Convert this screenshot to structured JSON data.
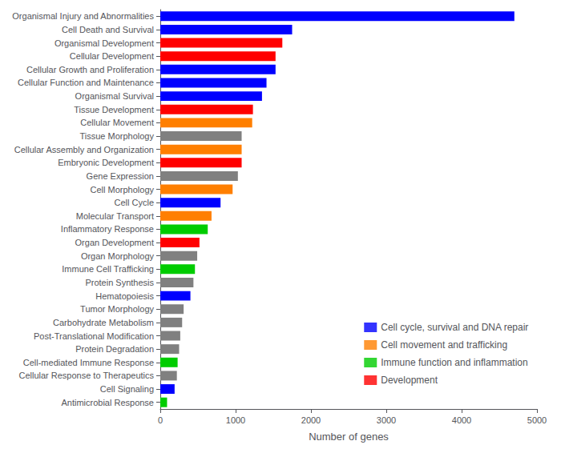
{
  "chart_data": {
    "type": "bar",
    "orientation": "horizontal",
    "categories": [
      "Organismal Injury and Abnormalities",
      "Cell Death and Survival",
      "Organismal Development",
      "Cellular Development",
      "Cellular Growth and Proliferation",
      "Cellular Function and Maintenance",
      "Organismal Survival",
      "Tissue Development",
      "Cellular Movement",
      "Tissue Morphology",
      "Cellular Assembly and Organization",
      "Embryonic Development",
      "Gene Expression",
      "Cell Morphology",
      "Cell Cycle",
      "Molecular Transport",
      "Inflammatory Response",
      "Organ Development",
      "Organ Morphology",
      "Immune Cell Trafficking",
      "Protein Synthesis",
      "Hematopoiesis",
      "Tumor Morphology",
      "Carbohydrate Metabolism",
      "Post-Translational Modification",
      "Protein Degradation",
      "Cell-mediated Immune Response",
      "Cellular Response to Therapeutics",
      "Cell Signaling",
      "Antimicrobial Response"
    ],
    "values": [
      4700,
      1750,
      1620,
      1530,
      1530,
      1410,
      1350,
      1230,
      1220,
      1080,
      1080,
      1080,
      1030,
      960,
      800,
      680,
      630,
      520,
      490,
      460,
      440,
      400,
      310,
      290,
      265,
      250,
      230,
      220,
      190,
      90
    ],
    "colors": [
      "#0000FF",
      "#0000FF",
      "#FF0000",
      "#FF0000",
      "#0000FF",
      "#0000FF",
      "#0000FF",
      "#FF0000",
      "#FF7F00",
      "#808080",
      "#FF7F00",
      "#FF0000",
      "#808080",
      "#FF7F00",
      "#0000FF",
      "#FF7F00",
      "#00CC00",
      "#FF0000",
      "#808080",
      "#00CC00",
      "#808080",
      "#0000FF",
      "#808080",
      "#808080",
      "#808080",
      "#808080",
      "#00CC00",
      "#808080",
      "#0000FF",
      "#00CC00"
    ],
    "xlabel": "Number of genes",
    "xlim": [
      0,
      5000
    ],
    "xticks": [
      0,
      1000,
      2000,
      3000,
      4000,
      5000
    ],
    "grid": false,
    "legend": "lower right",
    "legend_labels": [
      "Cell cycle, survival and DNA repair",
      "Cell movement and trafficking",
      "Immune function and inflammation",
      "Development"
    ],
    "legend_colors": [
      "#0000FF",
      "#FF7F00",
      "#00CC00",
      "#FF0000"
    ]
  }
}
